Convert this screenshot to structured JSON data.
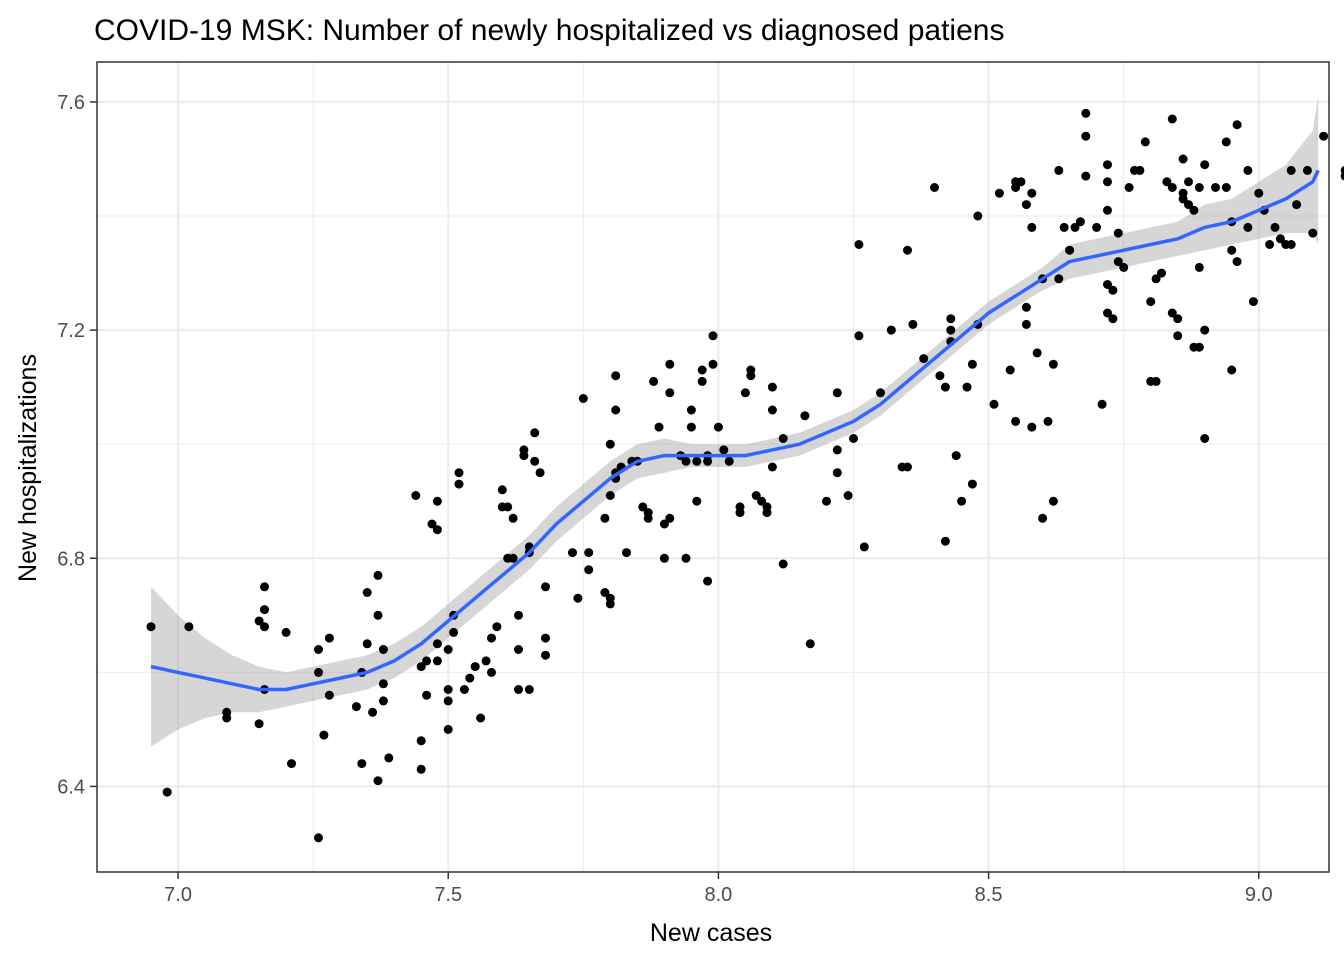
{
  "chart_data": {
    "type": "scatter",
    "title": "COVID-19 MSK: Number of newly hospitalized vs diagnosed patiens",
    "xlabel": "New cases",
    "ylabel": "New hospitalizations",
    "xlim": [
      6.85,
      9.13
    ],
    "ylim": [
      6.25,
      7.67
    ],
    "xticks": [
      7.0,
      7.5,
      8.0,
      8.5,
      9.0
    ],
    "xtick_labels": [
      "7.0",
      "7.5",
      "8.0",
      "8.5",
      "9.0"
    ],
    "yticks": [
      6.4,
      6.8,
      7.2,
      7.6
    ],
    "ytick_labels": [
      "6.4",
      "6.8",
      "7.2",
      "7.6"
    ],
    "grid": true,
    "colors": {
      "points": "#000000",
      "smooth": "#3366FF",
      "band": "#999999",
      "grid": "#ebebeb",
      "border": "#333333"
    },
    "points": [
      [
        6.95,
        6.68
      ],
      [
        6.98,
        6.39
      ],
      [
        7.02,
        6.68
      ],
      [
        7.09,
        6.52
      ],
      [
        7.09,
        6.53
      ],
      [
        7.16,
        6.75
      ],
      [
        7.16,
        6.71
      ],
      [
        7.15,
        6.69
      ],
      [
        7.16,
        6.68
      ],
      [
        7.16,
        6.57
      ],
      [
        7.15,
        6.51
      ],
      [
        7.2,
        6.67
      ],
      [
        7.21,
        6.44
      ],
      [
        7.26,
        6.64
      ],
      [
        7.26,
        6.6
      ],
      [
        7.26,
        6.31
      ],
      [
        7.27,
        6.49
      ],
      [
        7.28,
        6.56
      ],
      [
        7.28,
        6.66
      ],
      [
        7.33,
        6.54
      ],
      [
        7.34,
        6.6
      ],
      [
        7.34,
        6.44
      ],
      [
        7.35,
        6.74
      ],
      [
        7.35,
        6.65
      ],
      [
        7.36,
        6.53
      ],
      [
        7.37,
        6.77
      ],
      [
        7.37,
        6.7
      ],
      [
        7.37,
        6.41
      ],
      [
        7.38,
        6.64
      ],
      [
        7.38,
        6.55
      ],
      [
        7.38,
        6.58
      ],
      [
        7.39,
        6.45
      ],
      [
        7.44,
        6.91
      ],
      [
        7.45,
        6.61
      ],
      [
        7.45,
        6.48
      ],
      [
        7.45,
        6.43
      ],
      [
        7.46,
        6.56
      ],
      [
        7.46,
        6.62
      ],
      [
        7.47,
        6.86
      ],
      [
        7.48,
        6.85
      ],
      [
        7.48,
        6.9
      ],
      [
        7.48,
        6.65
      ],
      [
        7.48,
        6.62
      ],
      [
        7.5,
        6.57
      ],
      [
        7.5,
        6.55
      ],
      [
        7.5,
        6.64
      ],
      [
        7.5,
        6.5
      ],
      [
        7.51,
        6.67
      ],
      [
        7.51,
        6.7
      ],
      [
        7.52,
        6.93
      ],
      [
        7.52,
        6.95
      ],
      [
        7.53,
        6.57
      ],
      [
        7.54,
        6.59
      ],
      [
        7.55,
        6.61
      ],
      [
        7.56,
        6.52
      ],
      [
        7.57,
        6.62
      ],
      [
        7.58,
        6.66
      ],
      [
        7.58,
        6.6
      ],
      [
        7.59,
        6.68
      ],
      [
        7.6,
        6.92
      ],
      [
        7.6,
        6.89
      ],
      [
        7.61,
        6.89
      ],
      [
        7.61,
        6.8
      ],
      [
        7.62,
        6.8
      ],
      [
        7.62,
        6.87
      ],
      [
        7.63,
        6.64
      ],
      [
        7.63,
        6.57
      ],
      [
        7.63,
        6.7
      ],
      [
        7.64,
        6.98
      ],
      [
        7.64,
        6.99
      ],
      [
        7.65,
        6.81
      ],
      [
        7.65,
        6.82
      ],
      [
        7.65,
        6.57
      ],
      [
        7.66,
        6.97
      ],
      [
        7.66,
        7.02
      ],
      [
        7.67,
        6.95
      ],
      [
        7.68,
        6.75
      ],
      [
        7.68,
        6.66
      ],
      [
        7.68,
        6.63
      ],
      [
        7.73,
        6.81
      ],
      [
        7.74,
        6.73
      ],
      [
        7.75,
        7.08
      ],
      [
        7.76,
        6.81
      ],
      [
        7.76,
        6.78
      ],
      [
        7.79,
        6.74
      ],
      [
        7.8,
        6.73
      ],
      [
        7.8,
        6.72
      ],
      [
        7.79,
        6.87
      ],
      [
        7.8,
        6.91
      ],
      [
        7.81,
        6.94
      ],
      [
        7.81,
        6.95
      ],
      [
        7.82,
        6.96
      ],
      [
        7.8,
        7.0
      ],
      [
        7.81,
        7.06
      ],
      [
        7.81,
        7.12
      ],
      [
        7.83,
        6.81
      ],
      [
        7.84,
        6.97
      ],
      [
        7.85,
        6.97
      ],
      [
        7.86,
        6.89
      ],
      [
        7.87,
        6.88
      ],
      [
        7.87,
        6.87
      ],
      [
        7.88,
        7.11
      ],
      [
        7.89,
        7.03
      ],
      [
        7.9,
        6.86
      ],
      [
        7.9,
        6.8
      ],
      [
        7.91,
        6.87
      ],
      [
        7.91,
        7.14
      ],
      [
        7.91,
        7.09
      ],
      [
        7.93,
        6.98
      ],
      [
        7.94,
        6.8
      ],
      [
        7.94,
        6.97
      ],
      [
        7.95,
        7.06
      ],
      [
        7.95,
        7.03
      ],
      [
        7.96,
        6.9
      ],
      [
        7.96,
        6.97
      ],
      [
        7.97,
        7.13
      ],
      [
        7.97,
        7.11
      ],
      [
        7.98,
        6.76
      ],
      [
        7.98,
        6.97
      ],
      [
        7.98,
        6.98
      ],
      [
        7.99,
        7.19
      ],
      [
        7.99,
        7.14
      ],
      [
        8.0,
        7.03
      ],
      [
        8.01,
        6.99
      ],
      [
        8.02,
        6.97
      ],
      [
        8.04,
        6.89
      ],
      [
        8.04,
        6.88
      ],
      [
        8.05,
        7.09
      ],
      [
        8.06,
        7.13
      ],
      [
        8.06,
        7.12
      ],
      [
        8.07,
        6.91
      ],
      [
        8.08,
        6.9
      ],
      [
        8.09,
        6.88
      ],
      [
        8.09,
        6.89
      ],
      [
        8.1,
        7.1
      ],
      [
        8.1,
        7.06
      ],
      [
        8.1,
        6.96
      ],
      [
        8.12,
        7.01
      ],
      [
        8.12,
        6.79
      ],
      [
        8.16,
        7.05
      ],
      [
        8.17,
        6.65
      ],
      [
        8.2,
        6.9
      ],
      [
        8.22,
        7.09
      ],
      [
        8.22,
        6.99
      ],
      [
        8.22,
        6.95
      ],
      [
        8.24,
        6.91
      ],
      [
        8.25,
        7.01
      ],
      [
        8.26,
        7.19
      ],
      [
        8.26,
        7.35
      ],
      [
        8.27,
        6.82
      ],
      [
        8.3,
        7.09
      ],
      [
        8.32,
        7.2
      ],
      [
        8.34,
        6.96
      ],
      [
        8.35,
        6.96
      ],
      [
        8.35,
        7.34
      ],
      [
        8.36,
        7.21
      ],
      [
        8.38,
        7.15
      ],
      [
        8.4,
        7.45
      ],
      [
        8.41,
        7.12
      ],
      [
        8.42,
        6.83
      ],
      [
        8.42,
        7.1
      ],
      [
        8.43,
        7.2
      ],
      [
        8.43,
        7.22
      ],
      [
        8.43,
        7.18
      ],
      [
        8.44,
        6.98
      ],
      [
        8.45,
        6.9
      ],
      [
        8.46,
        7.1
      ],
      [
        8.47,
        6.93
      ],
      [
        8.47,
        7.14
      ],
      [
        8.48,
        7.21
      ],
      [
        8.48,
        7.4
      ],
      [
        8.51,
        7.07
      ],
      [
        8.52,
        7.44
      ],
      [
        8.54,
        7.13
      ],
      [
        8.55,
        7.46
      ],
      [
        8.55,
        7.45
      ],
      [
        8.55,
        7.04
      ],
      [
        8.56,
        7.46
      ],
      [
        8.57,
        7.42
      ],
      [
        8.57,
        7.24
      ],
      [
        8.57,
        7.21
      ],
      [
        8.58,
        7.38
      ],
      [
        8.58,
        7.44
      ],
      [
        8.58,
        7.03
      ],
      [
        8.59,
        7.16
      ],
      [
        8.6,
        6.87
      ],
      [
        8.6,
        7.29
      ],
      [
        8.61,
        7.04
      ],
      [
        8.62,
        6.9
      ],
      [
        8.62,
        7.14
      ],
      [
        8.63,
        7.48
      ],
      [
        8.63,
        7.29
      ],
      [
        8.64,
        7.38
      ],
      [
        8.65,
        7.34
      ],
      [
        8.66,
        7.38
      ],
      [
        8.67,
        7.39
      ],
      [
        8.68,
        7.54
      ],
      [
        8.68,
        7.58
      ],
      [
        8.68,
        7.47
      ],
      [
        8.7,
        7.38
      ],
      [
        8.71,
        7.07
      ],
      [
        8.72,
        7.49
      ],
      [
        8.72,
        7.46
      ],
      [
        8.72,
        7.41
      ],
      [
        8.72,
        7.28
      ],
      [
        8.72,
        7.23
      ],
      [
        8.73,
        7.22
      ],
      [
        8.73,
        7.27
      ],
      [
        8.74,
        7.37
      ],
      [
        8.74,
        7.32
      ],
      [
        8.75,
        7.31
      ],
      [
        8.76,
        7.45
      ],
      [
        8.77,
        7.48
      ],
      [
        8.78,
        7.48
      ],
      [
        8.79,
        7.53
      ],
      [
        8.8,
        7.11
      ],
      [
        8.8,
        7.25
      ],
      [
        8.81,
        7.29
      ],
      [
        8.81,
        7.11
      ],
      [
        8.82,
        7.3
      ],
      [
        8.83,
        7.46
      ],
      [
        8.84,
        7.57
      ],
      [
        8.84,
        7.45
      ],
      [
        8.84,
        7.23
      ],
      [
        8.85,
        7.22
      ],
      [
        8.85,
        7.19
      ],
      [
        8.86,
        7.5
      ],
      [
        8.86,
        7.44
      ],
      [
        8.86,
        7.43
      ],
      [
        8.87,
        7.46
      ],
      [
        8.87,
        7.42
      ],
      [
        8.88,
        7.41
      ],
      [
        8.88,
        7.17
      ],
      [
        8.89,
        7.17
      ],
      [
        8.89,
        7.45
      ],
      [
        8.89,
        7.31
      ],
      [
        8.9,
        7.49
      ],
      [
        8.9,
        7.01
      ],
      [
        8.9,
        7.2
      ],
      [
        8.92,
        7.45
      ],
      [
        8.94,
        7.53
      ],
      [
        8.94,
        7.45
      ],
      [
        8.95,
        7.34
      ],
      [
        8.95,
        7.39
      ],
      [
        8.95,
        7.13
      ],
      [
        8.96,
        7.56
      ],
      [
        8.96,
        7.32
      ],
      [
        8.98,
        7.48
      ],
      [
        8.98,
        7.38
      ],
      [
        8.99,
        7.25
      ],
      [
        9.0,
        7.44
      ],
      [
        9.01,
        7.41
      ],
      [
        9.02,
        7.35
      ],
      [
        9.03,
        7.38
      ],
      [
        9.04,
        7.36
      ],
      [
        9.05,
        7.35
      ],
      [
        9.06,
        7.48
      ],
      [
        9.06,
        7.35
      ],
      [
        9.07,
        7.42
      ],
      [
        9.09,
        7.48
      ],
      [
        9.1,
        7.37
      ],
      [
        9.12,
        7.54
      ],
      [
        9.16,
        7.47
      ],
      [
        9.16,
        7.48
      ]
    ],
    "smooth_line": {
      "x": [
        6.95,
        7.0,
        7.05,
        7.1,
        7.15,
        7.2,
        7.25,
        7.3,
        7.35,
        7.4,
        7.45,
        7.5,
        7.55,
        7.6,
        7.65,
        7.7,
        7.75,
        7.8,
        7.85,
        7.9,
        7.95,
        8.0,
        8.05,
        8.1,
        8.15,
        8.2,
        8.25,
        8.3,
        8.35,
        8.4,
        8.45,
        8.5,
        8.55,
        8.6,
        8.65,
        8.7,
        8.75,
        8.8,
        8.85,
        8.9,
        8.95,
        9.0,
        9.05,
        9.1,
        9.11
      ],
      "y": [
        6.61,
        6.6,
        6.59,
        6.58,
        6.57,
        6.57,
        6.58,
        6.59,
        6.6,
        6.62,
        6.65,
        6.69,
        6.73,
        6.77,
        6.81,
        6.86,
        6.9,
        6.94,
        6.97,
        6.98,
        6.98,
        6.98,
        6.98,
        6.99,
        7.0,
        7.02,
        7.04,
        7.07,
        7.11,
        7.15,
        7.19,
        7.23,
        7.26,
        7.29,
        7.32,
        7.33,
        7.34,
        7.35,
        7.36,
        7.38,
        7.39,
        7.41,
        7.43,
        7.46,
        7.48
      ],
      "ymin": [
        6.47,
        6.5,
        6.52,
        6.53,
        6.53,
        6.54,
        6.55,
        6.56,
        6.57,
        6.59,
        6.62,
        6.66,
        6.7,
        6.74,
        6.78,
        6.83,
        6.87,
        6.91,
        6.94,
        6.95,
        6.96,
        6.96,
        6.96,
        6.97,
        6.98,
        7.0,
        7.02,
        7.05,
        7.09,
        7.13,
        7.17,
        7.21,
        7.24,
        7.27,
        7.29,
        7.3,
        7.31,
        7.32,
        7.33,
        7.34,
        7.35,
        7.36,
        7.37,
        7.37,
        7.35
      ],
      "ymax": [
        6.75,
        6.7,
        6.66,
        6.63,
        6.61,
        6.6,
        6.61,
        6.62,
        6.63,
        6.65,
        6.68,
        6.72,
        6.76,
        6.8,
        6.84,
        6.89,
        6.93,
        6.97,
        7.0,
        7.01,
        7.0,
        7.0,
        7.0,
        7.01,
        7.02,
        7.04,
        7.06,
        7.09,
        7.13,
        7.17,
        7.21,
        7.25,
        7.28,
        7.31,
        7.35,
        7.36,
        7.37,
        7.38,
        7.39,
        7.42,
        7.43,
        7.46,
        7.49,
        7.55,
        7.61
      ]
    }
  }
}
